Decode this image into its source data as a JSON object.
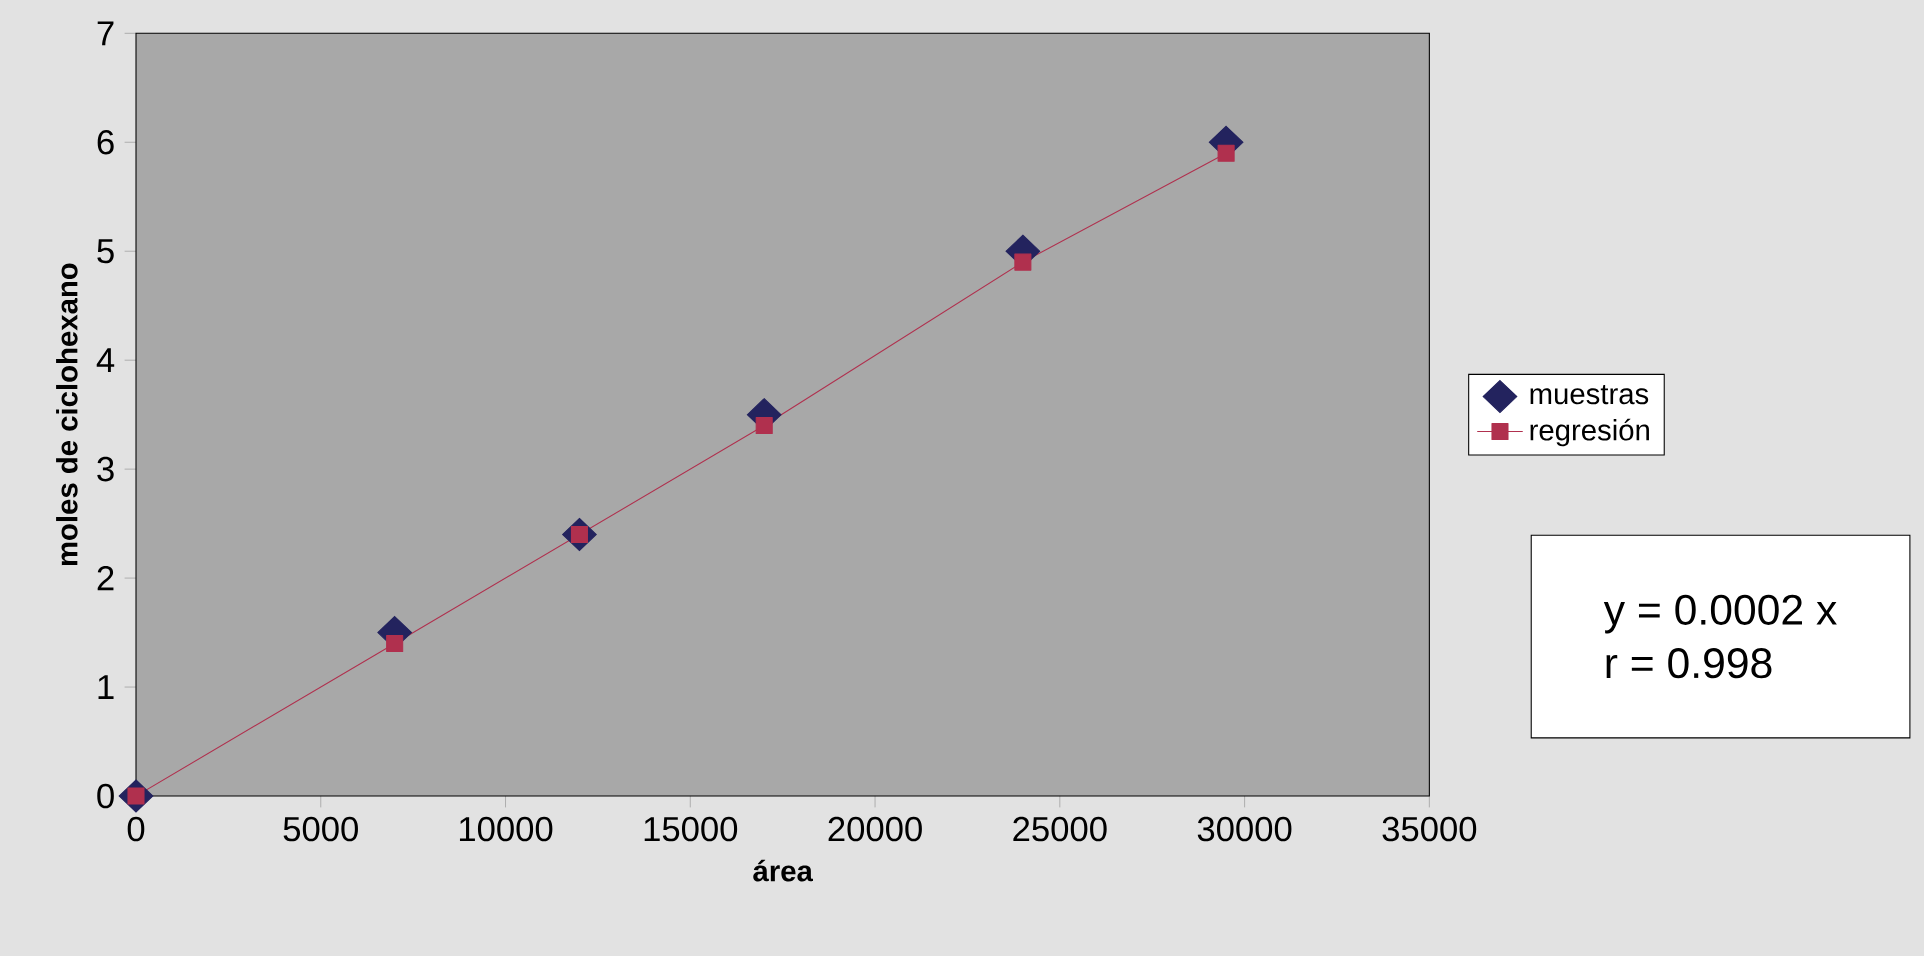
{
  "chart_data": {
    "type": "scatter",
    "xlabel": "área",
    "ylabel": "moles de ciclohexano",
    "xlim": [
      0,
      35000
    ],
    "xticks": [
      0,
      5000,
      10000,
      15000,
      20000,
      25000,
      30000,
      35000
    ],
    "ylim": [
      0,
      7
    ],
    "yticks": [
      0,
      1,
      2,
      3,
      4,
      5,
      6,
      7
    ],
    "grid": false,
    "legend": "right",
    "series": [
      {
        "name": "muestras",
        "marker": "diamond",
        "color": "#23235e",
        "x": [
          0,
          7000,
          12000,
          17000,
          24000,
          29500
        ],
        "values": [
          0,
          1.5,
          2.4,
          3.5,
          5.0,
          6.0
        ]
      },
      {
        "name": "regresión",
        "type": "line",
        "marker": "square",
        "color": "#b0304e",
        "x": [
          0,
          7000,
          12000,
          17000,
          24000,
          29500
        ],
        "values": [
          0,
          1.4,
          2.4,
          3.4,
          4.9,
          5.9
        ]
      }
    ],
    "annotations": [
      "y = 0.0002 x",
      "r = 0.998"
    ]
  }
}
